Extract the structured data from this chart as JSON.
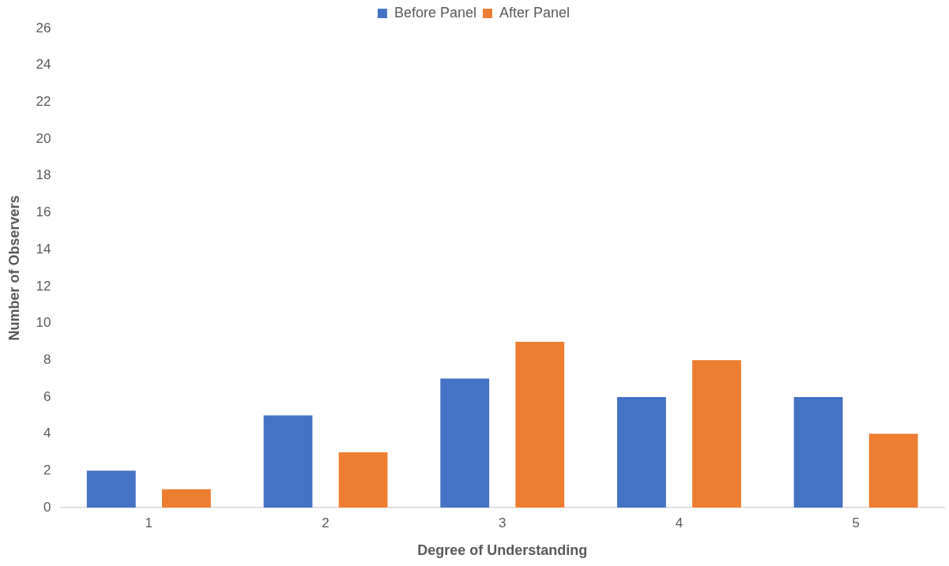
{
  "chart_data": {
    "type": "bar",
    "xlabel": "Degree of Understanding",
    "ylabel": "Number of Observers",
    "categories": [
      "1",
      "2",
      "3",
      "4",
      "5"
    ],
    "series": [
      {
        "name": "Before Panel",
        "color": "#4472c4",
        "values": [
          2,
          5,
          7,
          6,
          6
        ]
      },
      {
        "name": "After Panel",
        "color": "#ed7d31",
        "values": [
          1,
          3,
          9,
          8,
          4
        ]
      }
    ],
    "ylim": [
      0,
      26
    ],
    "yticks": [
      0,
      2,
      4,
      6,
      8,
      10,
      12,
      14,
      16,
      18,
      20,
      22,
      24,
      26
    ],
    "grid": false,
    "legend": "top"
  }
}
